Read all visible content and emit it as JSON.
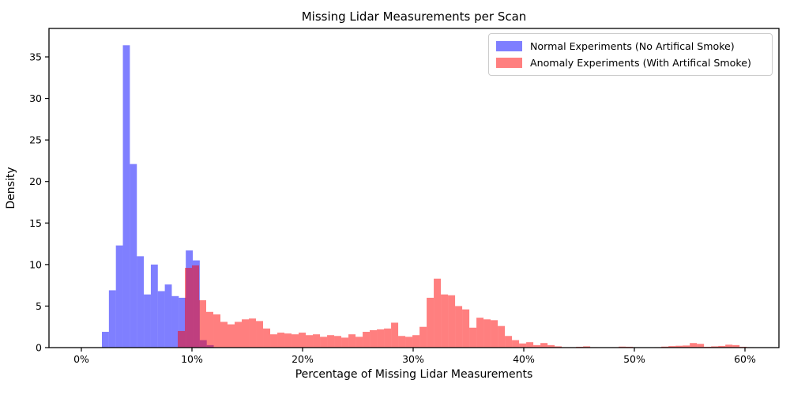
{
  "figure": {
    "title": "Missing Lidar Measurements per Scan",
    "xlabel": "Percentage of Missing Lidar Measurements",
    "ylabel": "Density"
  },
  "legend": {
    "entries": [
      {
        "label": "Normal Experiments (No Artifical Smoke)",
        "color": "rgba(0,0,255,0.5)"
      },
      {
        "label": "Anomaly Experiments (With Artifical Smoke)",
        "color": "rgba(255,0,0,0.5)"
      }
    ]
  },
  "chart_data": {
    "type": "histogram",
    "title": "Missing Lidar Measurements per Scan",
    "xlabel": "Percentage of Missing Lidar Measurements",
    "ylabel": "Density",
    "x_tick_labels": [
      "0%",
      "10%",
      "20%",
      "30%",
      "40%",
      "50%",
      "60%"
    ],
    "x_tick_values_pct": [
      0,
      10,
      20,
      30,
      40,
      50,
      60
    ],
    "y_tick_values": [
      0,
      5,
      10,
      15,
      20,
      25,
      30,
      35
    ],
    "xlim_pct": [
      -2.9,
      63.1
    ],
    "ylim": [
      0,
      38.3
    ],
    "grid": false,
    "legend_position": "upper right",
    "series": [
      {
        "name": "Normal Experiments (No Artifical Smoke)",
        "color": "rgba(0,0,255,0.5)",
        "bin_start_pct": 1.857,
        "bin_width_pct": 0.632,
        "densities": [
          1.9,
          6.9,
          12.3,
          36.4,
          22.1,
          11.0,
          6.4,
          10.0,
          6.8,
          7.6,
          6.2,
          6.0,
          11.7,
          10.5,
          0.9,
          0.3
        ]
      },
      {
        "name": "Anomaly Experiments (With Artifical Smoke)",
        "color": "rgba(255,0,0,0.5)",
        "bin_start_pct": 8.714,
        "bin_width_pct": 0.643,
        "densities": [
          2.0,
          9.6,
          9.9,
          5.7,
          4.3,
          4.0,
          3.1,
          2.8,
          3.1,
          3.4,
          3.5,
          3.2,
          2.3,
          1.6,
          1.8,
          1.7,
          1.6,
          1.8,
          1.5,
          1.6,
          1.3,
          1.5,
          1.4,
          1.2,
          1.6,
          1.3,
          1.9,
          2.1,
          2.2,
          2.3,
          3.0,
          1.4,
          1.3,
          1.5,
          2.5,
          6.0,
          8.3,
          6.4,
          6.3,
          5.0,
          4.6,
          2.4,
          3.6,
          3.4,
          3.3,
          2.6,
          1.4,
          0.9,
          0.5,
          0.65,
          0.3,
          0.55,
          0.3,
          0.15,
          0.05,
          0.05,
          0.1,
          0.15,
          0.05,
          0.03,
          0.03,
          0.05,
          0.12,
          0.1,
          0.03,
          0.03,
          0.03,
          0.05,
          0.12,
          0.18,
          0.22,
          0.25,
          0.55,
          0.45,
          0.1,
          0.15,
          0.2,
          0.35,
          0.3,
          0.1,
          0.05
        ]
      }
    ]
  }
}
